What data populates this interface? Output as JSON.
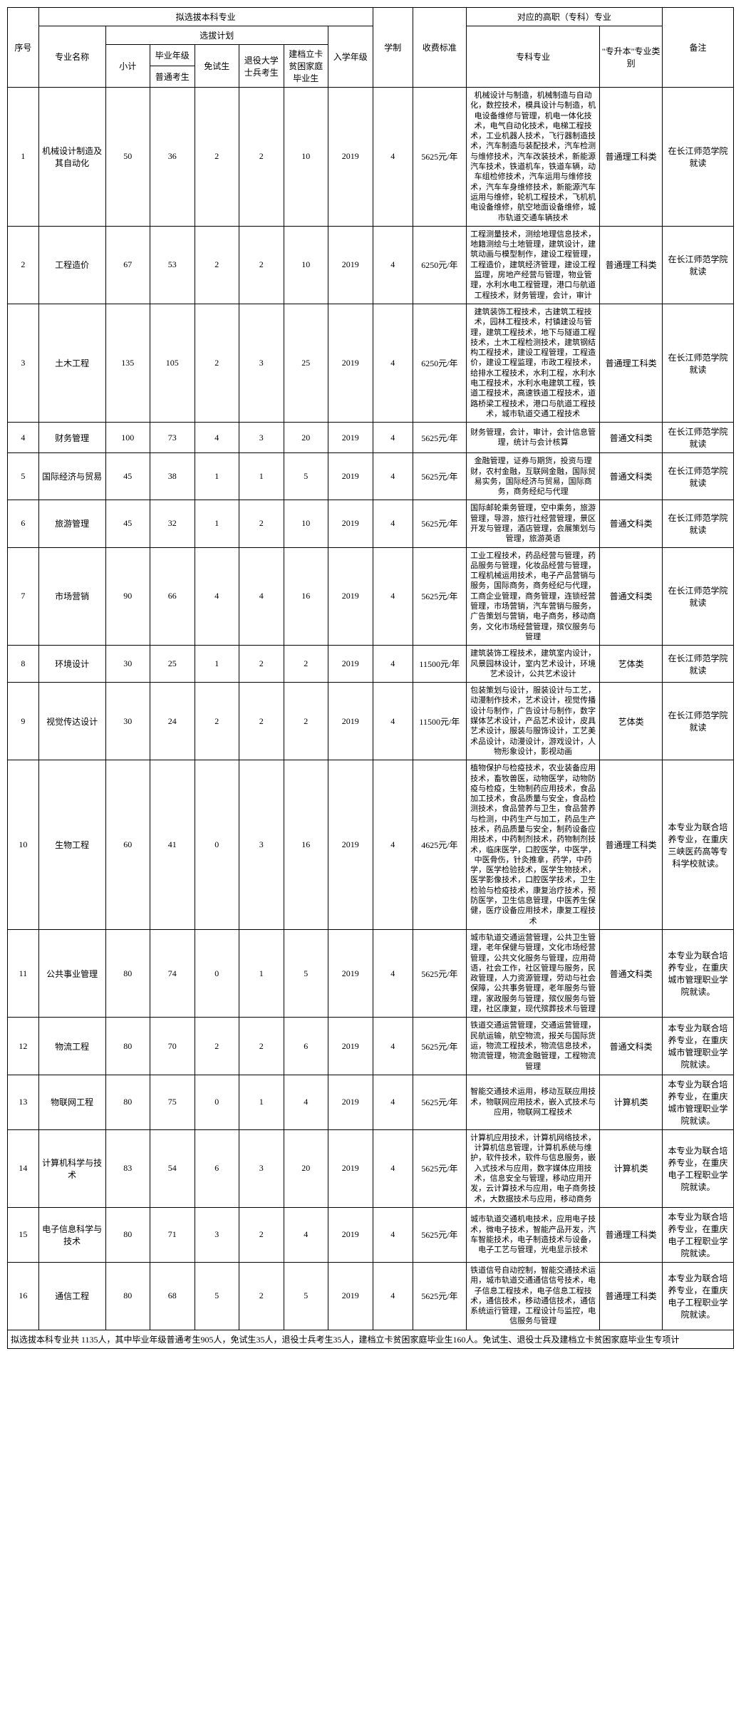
{
  "headers": {
    "seq": "序号",
    "benke_group": "拟选拔本科专业",
    "gaozhi_group": "对应的高职（专科）专业",
    "remarks": "备注",
    "major_name": "专业名称",
    "xuanba_plan": "选拔计划",
    "year": "入学年级",
    "xuezhi": "学制",
    "fee": "收费标准",
    "zhuanke": "专科专业",
    "category": "\"专升本\"专业类别",
    "xiaoji": "小计",
    "biye_grade": "毕业年级",
    "mianshi": "免试生",
    "tuiyi": "退役大学士兵考生",
    "jiandang": "建档立卡贫困家庭毕业生",
    "putong": "普通考生"
  },
  "rows": [
    {
      "seq": "1",
      "name": "机械设计制造及其自动化",
      "xiaoji": "50",
      "putong": "36",
      "mianshi": "2",
      "tuiyi": "2",
      "jiandang": "10",
      "year": "2019",
      "xuezhi": "4",
      "fee": "5625元/年",
      "zhuanke": "机械设计与制造，机械制造与自动化，数控技术，模具设计与制造，机电设备维修与管理，机电一体化技术，电气自动化技术，电梯工程技术，工业机器人技术，飞行器制造技术，汽车制造与装配技术，汽车检测与维修技术，汽车改装技术，新能源汽车技术，铁道机车，铁道车辆，动车组检修技术，汽车运用与维修技术，汽车车身维修技术，新能源汽车运用与维修，轮机工程技术，飞机机电设备维修，航空地面设备维修，城市轨道交通车辆技术",
      "category": "普通理工科类",
      "remarks": "在长江师范学院就读"
    },
    {
      "seq": "2",
      "name": "工程造价",
      "xiaoji": "67",
      "putong": "53",
      "mianshi": "2",
      "tuiyi": "2",
      "jiandang": "10",
      "year": "2019",
      "xuezhi": "4",
      "fee": "6250元/年",
      "zhuanke": "工程测量技术，测绘地理信息技术，地籍测绘与土地管理，建筑设计，建筑动画与模型制作，建设工程管理，工程造价，建筑经济管理，建设工程监理，房地产经营与管理，物业管理，水利水电工程管理，港口与航道工程技术，财务管理，会计，审计",
      "category": "普通理工科类",
      "remarks": "在长江师范学院就读"
    },
    {
      "seq": "3",
      "name": "土木工程",
      "xiaoji": "135",
      "putong": "105",
      "mianshi": "2",
      "tuiyi": "3",
      "jiandang": "25",
      "year": "2019",
      "xuezhi": "4",
      "fee": "6250元/年",
      "zhuanke": "建筑装饰工程技术，古建筑工程技术，园林工程技术，村镇建设与管理，建筑工程技术，地下与隧道工程技术，土木工程检测技术，建筑钢结构工程技术，建设工程管理，工程造价，建设工程监理，市政工程技术，给排水工程技术，水利工程，水利水电工程技术，水利水电建筑工程，铁道工程技术，高速铁道工程技术，道路桥梁工程技术，港口与航道工程技术，城市轨道交通工程技术",
      "category": "普通理工科类",
      "remarks": "在长江师范学院就读"
    },
    {
      "seq": "4",
      "name": "财务管理",
      "xiaoji": "100",
      "putong": "73",
      "mianshi": "4",
      "tuiyi": "3",
      "jiandang": "20",
      "year": "2019",
      "xuezhi": "4",
      "fee": "5625元/年",
      "zhuanke": "财务管理，会计，审计，会计信息管理，统计与会计核算",
      "category": "普通文科类",
      "remarks": "在长江师范学院就读"
    },
    {
      "seq": "5",
      "name": "国际经济与贸易",
      "xiaoji": "45",
      "putong": "38",
      "mianshi": "1",
      "tuiyi": "1",
      "jiandang": "5",
      "year": "2019",
      "xuezhi": "4",
      "fee": "5625元/年",
      "zhuanke": "金融管理，证券与期货，投资与理财，农村金融，互联网金融，国际贸易实务，国际经济与贸易，国际商务，商务经纪与代理",
      "category": "普通文科类",
      "remarks": "在长江师范学院就读"
    },
    {
      "seq": "6",
      "name": "旅游管理",
      "xiaoji": "45",
      "putong": "32",
      "mianshi": "1",
      "tuiyi": "2",
      "jiandang": "10",
      "year": "2019",
      "xuezhi": "4",
      "fee": "5625元/年",
      "zhuanke": "国际邮轮乘务管理，空中乘务，旅游管理，导游，旅行社经营管理，景区开发与管理，酒店管理，会展策划与管理，旅游英语",
      "category": "普通文科类",
      "remarks": "在长江师范学院就读"
    },
    {
      "seq": "7",
      "name": "市场营销",
      "xiaoji": "90",
      "putong": "66",
      "mianshi": "4",
      "tuiyi": "4",
      "jiandang": "16",
      "year": "2019",
      "xuezhi": "4",
      "fee": "5625元/年",
      "zhuanke": "工业工程技术，药品经营与管理，药品服务与管理，化妆品经营与管理，工程机械运用技术，电子产品营销与服务，国际商务，商务经纪与代理，工商企业管理，商务管理，连锁经营管理，市场营销，汽车营销与服务，广告策划与营销，电子商务，移动商务，文化市场经营管理，殡仪服务与管理",
      "category": "普通文科类",
      "remarks": "在长江师范学院就读"
    },
    {
      "seq": "8",
      "name": "环境设计",
      "xiaoji": "30",
      "putong": "25",
      "mianshi": "1",
      "tuiyi": "2",
      "jiandang": "2",
      "year": "2019",
      "xuezhi": "4",
      "fee": "11500元/年",
      "zhuanke": "建筑装饰工程技术，建筑室内设计，风景园林设计，室内艺术设计，环境艺术设计，公共艺术设计",
      "category": "艺体类",
      "remarks": "在长江师范学院就读"
    },
    {
      "seq": "9",
      "name": "视觉传达设计",
      "xiaoji": "30",
      "putong": "24",
      "mianshi": "2",
      "tuiyi": "2",
      "jiandang": "2",
      "year": "2019",
      "xuezhi": "4",
      "fee": "11500元/年",
      "zhuanke": "包装策划与设计，服装设计与工艺，动漫制作技术，艺术设计，视觉传播设计与制作，广告设计与制作，数字媒体艺术设计，产品艺术设计，皮具艺术设计，服装与服饰设计，工艺美术品设计，动漫设计，游戏设计，人物形象设计，影视动画",
      "category": "艺体类",
      "remarks": "在长江师范学院就读"
    },
    {
      "seq": "10",
      "name": "生物工程",
      "xiaoji": "60",
      "putong": "41",
      "mianshi": "0",
      "tuiyi": "3",
      "jiandang": "16",
      "year": "2019",
      "xuezhi": "4",
      "fee": "4625元/年",
      "zhuanke": "植物保护与检疫技术，农业装备应用技术，畜牧兽医，动物医学，动物防疫与检疫，生物制药应用技术，食品加工技术，食品质量与安全，食品检测技术，食品营养与卫生，食品营养与检测，中药生产与加工，药品生产技术，药品质量与安全，制药设备应用技术，中药制剂技术，药物制剂技术，临床医学，口腔医学，中医学，中医骨伤，针灸推拿，药学，中药学，医学检验技术，医学生物技术，医学影像技术，口腔医学技术，卫生检验与检疫技术，康复治疗技术，预防医学，卫生信息管理，中医养生保健，医疗设备应用技术，康复工程技术",
      "category": "普通理工科类",
      "remarks": "本专业为联合培养专业，在重庆三峡医药高等专科学校就读。"
    },
    {
      "seq": "11",
      "name": "公共事业管理",
      "xiaoji": "80",
      "putong": "74",
      "mianshi": "0",
      "tuiyi": "1",
      "jiandang": "5",
      "year": "2019",
      "xuezhi": "4",
      "fee": "5625元/年",
      "zhuanke": "城市轨道交通运营管理，公共卫生管理，老年保健与管理，文化市场经营管理，公共文化服务与管理，应用荷语，社会工作，社区管理与服务，民政管理，人力资源管理，劳动与社会保障，公共事务管理，老年服务与管理，家政服务与管理，殡仪服务与管理，社区康复，现代殡葬技术与管理",
      "category": "普通文科类",
      "remarks": "本专业为联合培养专业，在重庆城市管理职业学院就读。"
    },
    {
      "seq": "12",
      "name": "物流工程",
      "xiaoji": "80",
      "putong": "70",
      "mianshi": "2",
      "tuiyi": "2",
      "jiandang": "6",
      "year": "2019",
      "xuezhi": "4",
      "fee": "5625元/年",
      "zhuanke": "铁道交通运营管理，交通运营管理，民航运输，航空物流，报关与国际货运，物流工程技术，物流信息技术，物流管理，物流金融管理，工程物流管理",
      "category": "普通文科类",
      "remarks": "本专业为联合培养专业，在重庆城市管理职业学院就读。"
    },
    {
      "seq": "13",
      "name": "物联网工程",
      "xiaoji": "80",
      "putong": "75",
      "mianshi": "0",
      "tuiyi": "1",
      "jiandang": "4",
      "year": "2019",
      "xuezhi": "4",
      "fee": "5625元/年",
      "zhuanke": "智能交通技术运用，移动互联应用技术，物联网应用技术，嵌入式技术与应用，物联网工程技术",
      "category": "计算机类",
      "remarks": "本专业为联合培养专业，在重庆城市管理职业学院就读。"
    },
    {
      "seq": "14",
      "name": "计算机科学与技术",
      "xiaoji": "83",
      "putong": "54",
      "mianshi": "6",
      "tuiyi": "3",
      "jiandang": "20",
      "year": "2019",
      "xuezhi": "4",
      "fee": "5625元/年",
      "zhuanke": "计算机应用技术，计算机网络技术，计算机信息管理，计算机系统与维护，软件技术，软件与信息服务，嵌入式技术与应用，数字媒体应用技术，信息安全与管理，移动应用开发，云计算技术与应用，电子商务技术，大数据技术与应用，移动商务",
      "category": "计算机类",
      "remarks": "本专业为联合培养专业，在重庆电子工程职业学院就读。"
    },
    {
      "seq": "15",
      "name": "电子信息科学与技术",
      "xiaoji": "80",
      "putong": "71",
      "mianshi": "3",
      "tuiyi": "2",
      "jiandang": "4",
      "year": "2019",
      "xuezhi": "4",
      "fee": "5625元/年",
      "zhuanke": "城市轨道交通机电技术，应用电子技术，微电子技术，智能产品开发，汽车智能技术，电子制造技术与设备，电子工艺与管理，光电显示技术",
      "category": "普通理工科类",
      "remarks": "本专业为联合培养专业，在重庆电子工程职业学院就读。"
    },
    {
      "seq": "16",
      "name": "通信工程",
      "xiaoji": "80",
      "putong": "68",
      "mianshi": "5",
      "tuiyi": "2",
      "jiandang": "5",
      "year": "2019",
      "xuezhi": "4",
      "fee": "5625元/年",
      "zhuanke": "铁道信号自动控制，智能交通技术运用，城市轨道交通通信信号技术，电子信息工程技术，电子信息工程技术，通信技术，移动通信技术，通信系统运行管理，工程设计与监控，电信服务与管理",
      "category": "普通理工科类",
      "remarks": "本专业为联合培养专业，在重庆电子工程职业学院就读。"
    }
  ],
  "footer": "拟选拔本科专业共 1135人，其中毕业年级普通考生905人，免试生35人，退役士兵考生35人，建档立卡贫困家庭毕业生160人。免试生、退役士兵及建档立卡贫困家庭毕业生专项计"
}
